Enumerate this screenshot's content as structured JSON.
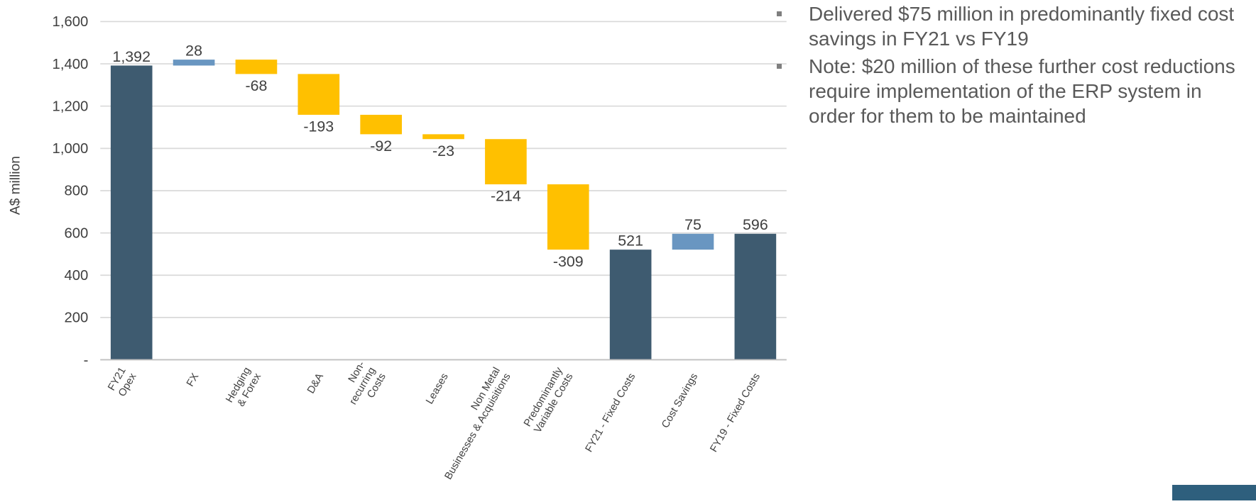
{
  "chart_data": {
    "type": "waterfall",
    "y_label": "A$ million",
    "categories": [
      "FY21\nOpex",
      "FX",
      "Hedging\n& Forex",
      "D&A",
      "Non-\nrecurring\nCosts",
      "Leases",
      "Non Metal\nBusinesses & Acquisitions",
      "Predominantly\nVariable Costs",
      "FY21 - Fixed Costs",
      "Cost Savings",
      "FY19 - Fixed Costs"
    ],
    "values": [
      1392,
      28,
      -68,
      -193,
      -92,
      -23,
      -214,
      -309,
      521,
      75,
      596
    ],
    "value_labels": [
      "1,392",
      "28",
      "-68",
      "-193",
      "-92",
      "-23",
      "-214",
      "-309",
      "521",
      "75",
      "596"
    ],
    "measure": [
      "absolute",
      "relative",
      "relative",
      "relative",
      "relative",
      "relative",
      "relative",
      "relative",
      "absolute",
      "relative",
      "absolute"
    ],
    "colors": {
      "absolute": "#3e5b70",
      "increase": "#6996c1",
      "decrease": "#ffc000"
    },
    "ylim": [
      0,
      1600
    ],
    "yticks": [
      {
        "value": 0,
        "label": "-"
      },
      200,
      400,
      600,
      800,
      {
        "value": 1000,
        "label": "1,000"
      },
      {
        "value": 1200,
        "label": "1,200"
      },
      {
        "value": 1400,
        "label": "1,400"
      },
      {
        "value": 1600,
        "label": "1,600"
      }
    ],
    "grid": true
  },
  "notes": [
    "Delivered $75 million in predominantly fixed cost savings in FY21 vs FY19",
    "Note: $20 million of these further cost reductions require implementation of the ERP system in order for them to be maintained"
  ]
}
